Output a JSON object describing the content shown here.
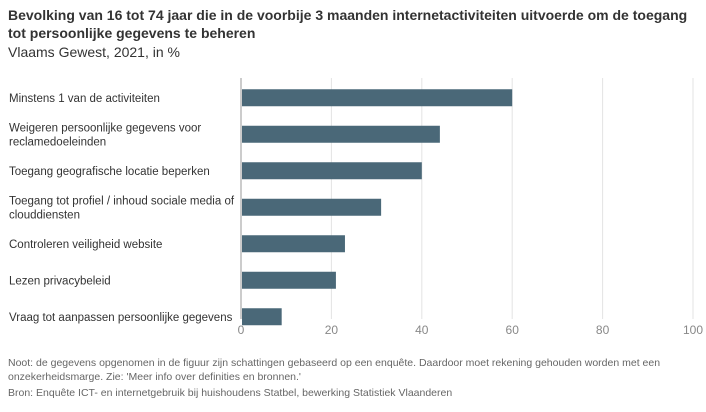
{
  "title": "Bevolking van 16 tot 74 jaar die in de voorbije 3 maanden internetactiviteiten uitvoerde om de toegang tot persoonlijke gegevens te beheren",
  "subtitle": "Vlaams Gewest, 2021, in %",
  "footer": {
    "note": "Noot: de gegevens opgenomen in de figuur zijn schattingen gebaseerd op een enquête. Daardoor moet rekening gehouden worden met een onzekerheidsmarge. Zie: 'Meer info over definities en bronnen.'",
    "source": "Bron: Enquête ICT- en internetgebruik bij huishoudens Statbel, bewerking Statistiek Vlaanderen"
  },
  "chart_data": {
    "type": "bar",
    "orientation": "horizontal",
    "categories": [
      [
        "Minstens 1 van de activiteiten"
      ],
      [
        "Weigeren persoonlijke gegevens voor",
        "reclamedoeleinden"
      ],
      [
        "Toegang geografische locatie beperken"
      ],
      [
        "Toegang tot profiel / inhoud sociale media of",
        "clouddiensten"
      ],
      [
        "Controleren veiligheid website"
      ],
      [
        "Lezen privacybeleid"
      ],
      [
        "Vraag tot aanpassen persoonlijke gegevens"
      ]
    ],
    "values": [
      60,
      44,
      40,
      31,
      23,
      21,
      9
    ],
    "xlim": [
      0,
      100
    ],
    "xticks": [
      0,
      20,
      40,
      60,
      80,
      100
    ],
    "bar_color": "#4a6878",
    "grid": true
  }
}
